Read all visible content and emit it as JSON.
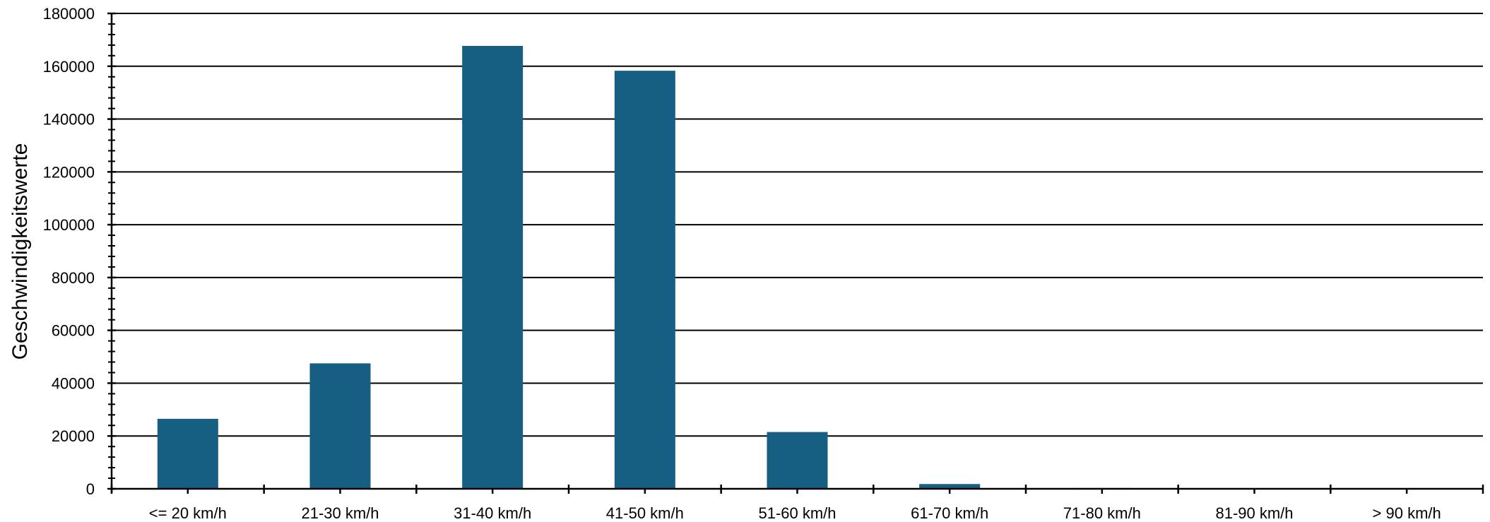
{
  "chart_data": {
    "type": "bar",
    "title": "",
    "xlabel": "",
    "ylabel": "Geschwindigkeitswerte",
    "categories": [
      "<= 20 km/h",
      "21-30 km/h",
      "31-40 km/h",
      "41-50 km/h",
      "51-60 km/h",
      "61-70 km/h",
      "71-80 km/h",
      "81-90 km/h",
      "> 90 km/h"
    ],
    "values": [
      26500,
      47500,
      167700,
      158300,
      21500,
      1800,
      300,
      0,
      0
    ],
    "ylim": [
      0,
      180000
    ],
    "yticks": [
      "0",
      "20000",
      "40000",
      "60000",
      "80000",
      "100000",
      "120000",
      "140000",
      "160000",
      "180000"
    ],
    "grid": true,
    "legend": "none",
    "bar_color": "#175f82"
  }
}
